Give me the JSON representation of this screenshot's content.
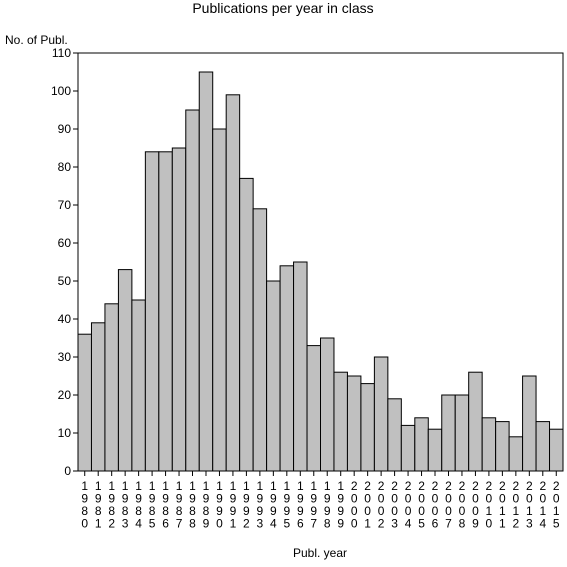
{
  "chart_data": {
    "type": "bar",
    "title": "Publications per year in class",
    "xlabel": "Publ. year",
    "ylabel": "No. of Publ.",
    "ylim": [
      0,
      110
    ],
    "yticks": [
      0,
      10,
      20,
      30,
      40,
      50,
      60,
      70,
      80,
      90,
      100,
      110
    ],
    "grid": false,
    "categories": [
      "1980",
      "1981",
      "1982",
      "1983",
      "1984",
      "1985",
      "1986",
      "1987",
      "1988",
      "1989",
      "1990",
      "1991",
      "1992",
      "1993",
      "1994",
      "1995",
      "1996",
      "1997",
      "1998",
      "1999",
      "2000",
      "2001",
      "2002",
      "2003",
      "2004",
      "2005",
      "2006",
      "2007",
      "2008",
      "2009",
      "2010",
      "2011",
      "2012",
      "2013",
      "2014",
      "2015"
    ],
    "values": [
      36,
      39,
      44,
      53,
      45,
      84,
      84,
      85,
      95,
      105,
      90,
      99,
      77,
      69,
      50,
      54,
      55,
      33,
      35,
      26,
      25,
      23,
      30,
      19,
      12,
      14,
      11,
      20,
      20,
      26,
      14,
      13,
      9,
      25,
      13,
      11
    ],
    "colors": {
      "bar_fill": "#c0c0c0",
      "bar_stroke": "#000000"
    }
  }
}
